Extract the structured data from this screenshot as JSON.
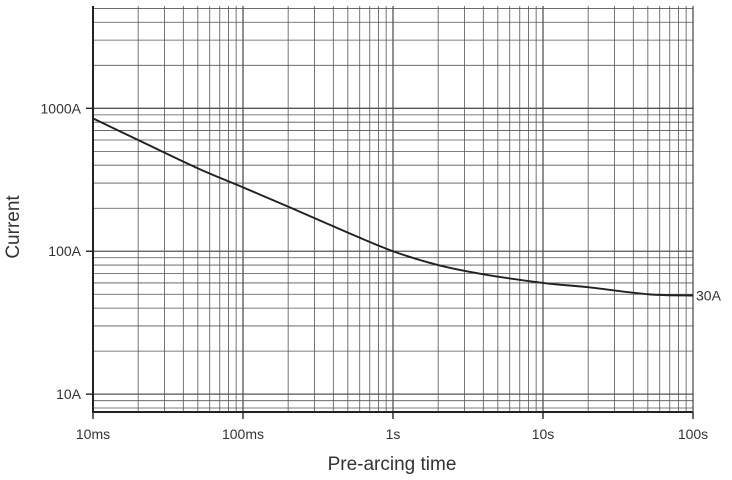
{
  "chart_data": {
    "type": "line",
    "xlabel": "Pre-arcing time",
    "ylabel": "Current",
    "x_scale": "log",
    "y_scale": "log",
    "xlim": [
      0.01,
      100
    ],
    "ylim": [
      7.5,
      5200
    ],
    "grid": true,
    "x_ticks": [
      {
        "value": 0.01,
        "label": "10ms"
      },
      {
        "value": 0.1,
        "label": "100ms"
      },
      {
        "value": 1,
        "label": "1s"
      },
      {
        "value": 10,
        "label": "10s"
      },
      {
        "value": 100,
        "label": "100s"
      }
    ],
    "y_ticks": [
      {
        "value": 10,
        "label": "10A"
      },
      {
        "value": 100,
        "label": "100A"
      },
      {
        "value": 1000,
        "label": "1000A"
      }
    ],
    "series": [
      {
        "name": "30A",
        "color": "#222222",
        "x": [
          0.01,
          0.02,
          0.05,
          0.1,
          0.2,
          0.5,
          1,
          2,
          4,
          10,
          20,
          50,
          100
        ],
        "y": [
          850,
          600,
          380,
          280,
          205,
          135,
          100,
          80,
          69,
          60,
          56,
          50,
          49
        ]
      }
    ]
  }
}
